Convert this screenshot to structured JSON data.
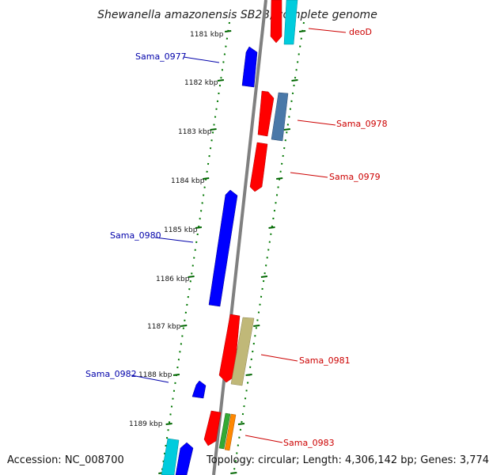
{
  "title": "Shewanella amazonensis SB2B, complete genome",
  "accession": "Accession: NC_008700",
  "summary": "Topology: circular; Length: 4,306,142 bp; Genes: 3,774",
  "colors": {
    "backbone": "#808080",
    "forward_label": "#cc0000",
    "reverse_label": "#0000aa",
    "ticks": "#006600",
    "blue": "#0000ff",
    "red": "#ff0000",
    "cyan": "#00ccdd",
    "steelblue": "#4a78a8",
    "khaki": "#c0b878",
    "green": "#33aa33",
    "orange": "#ff8800"
  },
  "kbp_labels": [
    "1181 kbp",
    "1182 kbp",
    "1183 kbp",
    "1184 kbp",
    "1185 kbp",
    "1186 kbp",
    "1187 kbp",
    "1188 kbp",
    "1189 kbp"
  ],
  "gene_labels": {
    "deoD": "deoD",
    "sama_0977": "Sama_0977",
    "sama_0978": "Sama_0978",
    "sama_0979": "Sama_0979",
    "sama_0980": "Sama_0980",
    "sama_0981": "Sama_0981",
    "sama_0982": "Sama_0982",
    "sama_0983": "Sama_0983"
  }
}
